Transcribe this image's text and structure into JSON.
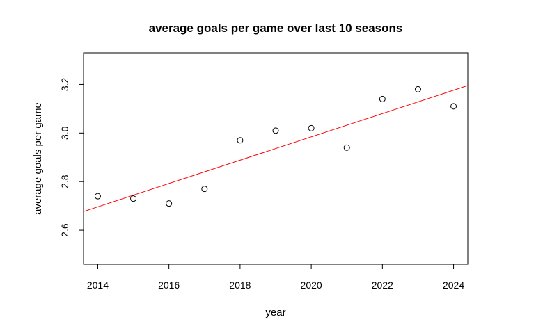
{
  "chart_data": {
    "type": "scatter",
    "title": "average goals per game over last 10 seasons",
    "xlabel": "year",
    "ylabel": "average goals per game",
    "xlim": [
      2013.6,
      2024.4
    ],
    "ylim": [
      2.46,
      3.33
    ],
    "x_ticks": [
      2014,
      2016,
      2018,
      2020,
      2022,
      2024
    ],
    "y_ticks": [
      2.6,
      2.8,
      3.0,
      3.2
    ],
    "y_tick_labels": [
      "2.6",
      "2.8",
      "3.0",
      "3.2"
    ],
    "grid": false,
    "points": [
      {
        "x": 2014,
        "y": 2.74
      },
      {
        "x": 2015,
        "y": 2.73
      },
      {
        "x": 2016,
        "y": 2.71
      },
      {
        "x": 2017,
        "y": 2.77
      },
      {
        "x": 2018,
        "y": 2.97
      },
      {
        "x": 2019,
        "y": 3.01
      },
      {
        "x": 2020,
        "y": 3.02
      },
      {
        "x": 2021,
        "y": 2.94
      },
      {
        "x": 2022,
        "y": 3.14
      },
      {
        "x": 2023,
        "y": 3.18
      },
      {
        "x": 2024,
        "y": 3.11
      }
    ],
    "trend_line": {
      "slope": 0.048,
      "intercept_at_2013_6": 2.677,
      "color": "#ff0000"
    },
    "point_color": "#000000"
  }
}
